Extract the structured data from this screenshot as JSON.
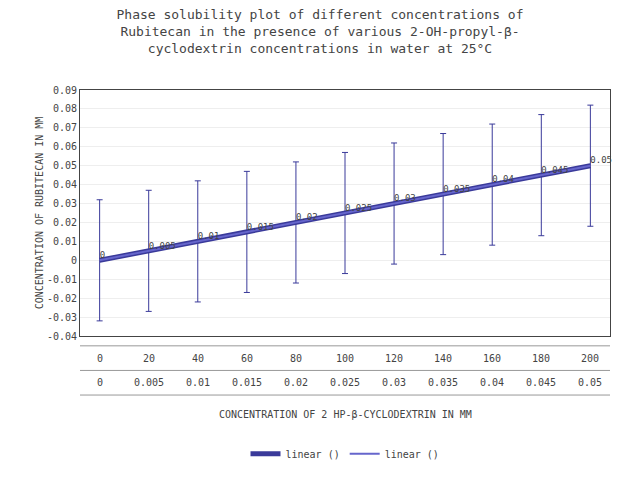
{
  "chart_data": {
    "type": "line",
    "title": "Phase solubility plot of different concentrations of\nRubitecan in the presence of various 2-OH-propyl-β-\ncyclodextrin concentrations in water at 25°C",
    "xlabel": "CONCENTRATION OF 2 HP-β-CYCLODEXTRIN IN MM",
    "ylabel": "CONCENTRATION OF RUBITECAN IN MM",
    "x": [
      0,
      20,
      40,
      60,
      80,
      100,
      120,
      140,
      160,
      180,
      200
    ],
    "series": [
      {
        "name": "linear ()",
        "color": "#3a3a9a",
        "values": [
          0,
          0.005,
          0.01,
          0.015,
          0.02,
          0.025,
          0.03,
          0.035,
          0.04,
          0.045,
          0.05
        ],
        "error": 0.032
      },
      {
        "name": "linear ()",
        "color": "#6666cc",
        "values": [
          0,
          0.005,
          0.01,
          0.015,
          0.02,
          0.025,
          0.03,
          0.035,
          0.04,
          0.045,
          0.05
        ],
        "data_labels": true
      }
    ],
    "xlim": [
      -8,
      208
    ],
    "ylim": [
      -0.04,
      0.09
    ],
    "yticks": [
      -0.04,
      -0.03,
      -0.02,
      -0.01,
      0,
      0.01,
      0.02,
      0.03,
      0.04,
      0.05,
      0.06,
      0.07,
      0.08,
      0.09
    ],
    "grid": true,
    "tick_labels": "y",
    "legend": "bottom",
    "table": [
      [
        "0",
        "20",
        "40",
        "60",
        "80",
        "100",
        "120",
        "140",
        "160",
        "180",
        "200"
      ],
      [
        "0",
        "0.005",
        "0.01",
        "0.015",
        "0.02",
        "0.025",
        "0.03",
        "0.035",
        "0.04",
        "0.045",
        "0.05"
      ]
    ]
  }
}
